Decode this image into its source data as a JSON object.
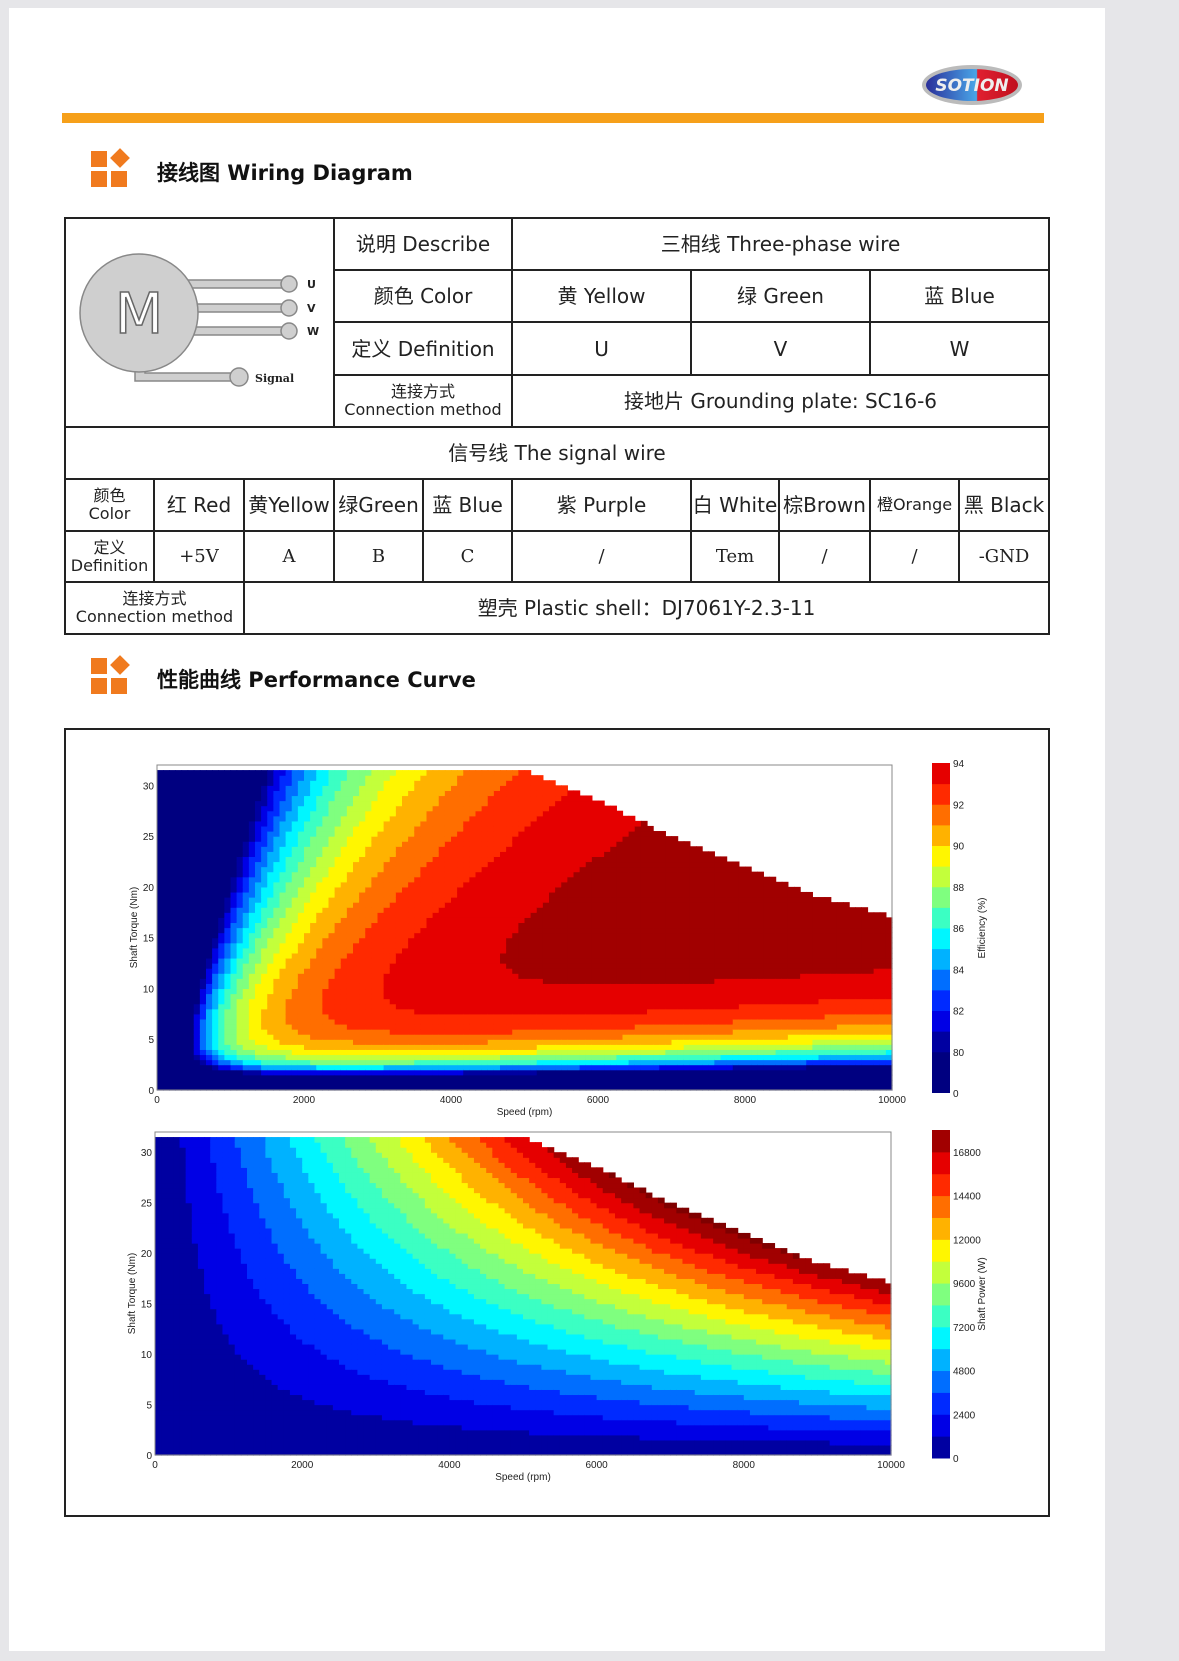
{
  "logo": {
    "text": "SOTION"
  },
  "sections": {
    "wiring": "接线图 Wiring Diagram",
    "performance": "性能曲线 Performance Curve"
  },
  "motor_diagram": {
    "center_label": "M",
    "terminals": [
      "U",
      "V",
      "W"
    ],
    "signal_label": "Signal"
  },
  "three_phase": {
    "describe_label": "说明 Describe",
    "describe_value": "三相线 Three-phase wire",
    "color_label": "颜色 Color",
    "colors": [
      "黄 Yellow",
      "绿 Green",
      "蓝 Blue"
    ],
    "definition_label": "定义 Definition",
    "definitions": [
      "U",
      "V",
      "W"
    ],
    "connection_label_cn": "连接方式",
    "connection_label_en": "Connection method",
    "connection_value": "接地片 Grounding plate: SC16-6"
  },
  "signal": {
    "title": "信号线 The signal wire",
    "color_label_cn": "颜色",
    "color_label_en": "Color",
    "colors": [
      "红 Red",
      "黄Yellow",
      "绿Green",
      "蓝 Blue",
      "紫 Purple",
      "白 White",
      "棕Brown",
      "橙Orange",
      "黑 Black"
    ],
    "definition_label_cn": "定义",
    "definition_label_en": "Definition",
    "definitions": [
      "+5V",
      "A",
      "B",
      "C",
      "/",
      "Tem",
      "/",
      "/",
      "-GND"
    ],
    "connection_label_cn": "连接方式",
    "connection_label_en": "Connection method",
    "connection_value": "塑壳 Plastic shell：DJ7061Y-2.3-11"
  },
  "chart_data": [
    {
      "type": "heatmap",
      "xlabel": "Speed (rpm)",
      "ylabel": "Shaft Torque (Nm)",
      "colorbar_label": "Efficiency (%)",
      "xlim": [
        0,
        10000
      ],
      "ylim": [
        0,
        32
      ],
      "xticks": [
        0,
        2000,
        4000,
        6000,
        8000,
        10000
      ],
      "yticks": [
        0,
        5,
        10,
        15,
        20,
        25,
        30
      ],
      "colorbar_ticks": [
        0,
        80,
        82,
        84,
        86,
        88,
        90,
        92,
        94
      ],
      "colormap": "jet",
      "peak_efficiency": 94,
      "torque_envelope": {
        "speed": [
          0,
          5000,
          6000,
          7000,
          8000,
          9000,
          10000
        ],
        "torque": [
          31.5,
          31.5,
          28.5,
          25,
          22,
          19,
          17
        ]
      }
    },
    {
      "type": "heatmap",
      "xlabel": "Speed (rpm)",
      "ylabel": "Shaft Torque (Nm)",
      "colorbar_label": "Shaft Power (W)",
      "xlim": [
        0,
        10000
      ],
      "ylim": [
        0,
        32
      ],
      "xticks": [
        0,
        2000,
        4000,
        6000,
        8000,
        10000
      ],
      "yticks": [
        0,
        5,
        10,
        15,
        20,
        25,
        30
      ],
      "colorbar_ticks": [
        0,
        2400,
        4800,
        7200,
        9600,
        12000,
        14400,
        16800
      ],
      "colormap": "jet",
      "max_power": 18000,
      "torque_envelope": {
        "speed": [
          0,
          5000,
          6000,
          7000,
          8000,
          9000,
          10000
        ],
        "torque": [
          31.5,
          31.5,
          28.5,
          25,
          22,
          19,
          17
        ]
      }
    }
  ],
  "colors": {
    "accent": "#f6a01a",
    "icon": "#f07a1e"
  }
}
